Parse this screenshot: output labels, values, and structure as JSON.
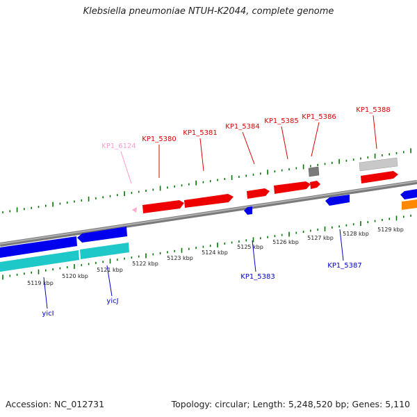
{
  "title": "Klebsiella pneumoniae NTUH-K2044, complete genome",
  "footer": {
    "accession": "Accession: NC_012731",
    "summary": "Topology: circular; Length: 5,248,520 bp; Genes: 5,110"
  },
  "colors": {
    "forward_gene": "#ff0000",
    "reverse_gene": "#0000ee",
    "cyan_track": "#1ec8c8",
    "orange_gene": "#ff8800",
    "pseudo_gene": "#ffaacc",
    "gray_feature": "#c8c8c8",
    "dark_feature": "#777777",
    "backbone": "#8c8c8c",
    "tick": "#007700"
  },
  "kbp_labels": [
    "5119 kbp",
    "5120 kbp",
    "5121 kbp",
    "5122 kbp",
    "5123 kbp",
    "5124 kbp",
    "5125 kbp",
    "5126 kbp",
    "5127 kbp",
    "5128 kbp",
    "5129 kbp"
  ],
  "top_labels": [
    {
      "text": "KP1_6124",
      "color": "#ff99cc"
    },
    {
      "text": "KP1_5380",
      "color": "#dd0000"
    },
    {
      "text": "KP1_5381",
      "color": "#dd0000"
    },
    {
      "text": "KP1_5384",
      "color": "#dd0000"
    },
    {
      "text": "KP1_5385",
      "color": "#dd0000"
    },
    {
      "text": "KP1_5386",
      "color": "#dd0000"
    },
    {
      "text": "KP1_5388",
      "color": "#dd0000"
    }
  ],
  "bottom_labels": [
    {
      "text": "KP1_5383",
      "color": "#0000cc"
    },
    {
      "text": "KP1_5387",
      "color": "#0000cc"
    },
    {
      "text": "yicJ",
      "color": "#0000cc"
    },
    {
      "text": "yicI",
      "color": "#0000cc"
    }
  ]
}
